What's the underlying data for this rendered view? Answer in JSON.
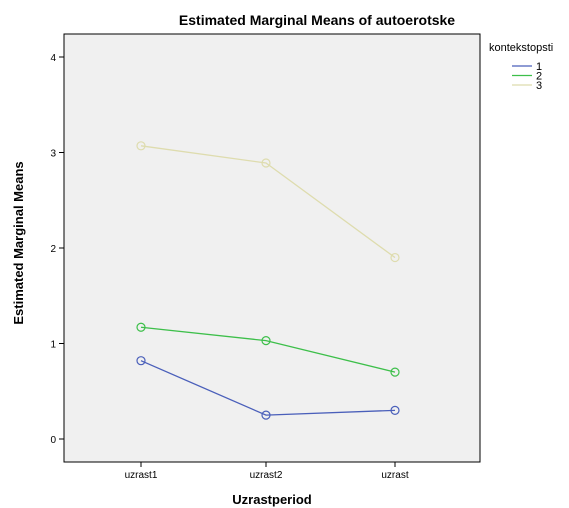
{
  "chart_data": {
    "type": "line",
    "title": "Estimated Marginal Means of autoerotske",
    "xlabel": "Uzrastperiod",
    "ylabel": "Estimated Marginal Means",
    "categories": [
      "uzrast1",
      "uzrast2",
      "uzrast"
    ],
    "ylim": [
      -0.2,
      4.2
    ],
    "yticks": [
      0,
      1,
      2,
      3,
      4
    ],
    "grid": false,
    "legend": {
      "title": "kontekstopsti",
      "position": "right"
    },
    "series": [
      {
        "name": "1",
        "color": "#4a5fba",
        "values": [
          0.82,
          0.25,
          0.3
        ]
      },
      {
        "name": "2",
        "color": "#3dbf4a",
        "values": [
          1.17,
          1.03,
          0.7
        ]
      },
      {
        "name": "3",
        "color": "#dedcae",
        "values": [
          3.07,
          2.89,
          1.9
        ]
      }
    ]
  },
  "colors": {
    "plot_background": "#f0f0f0",
    "axis": "#000000"
  }
}
